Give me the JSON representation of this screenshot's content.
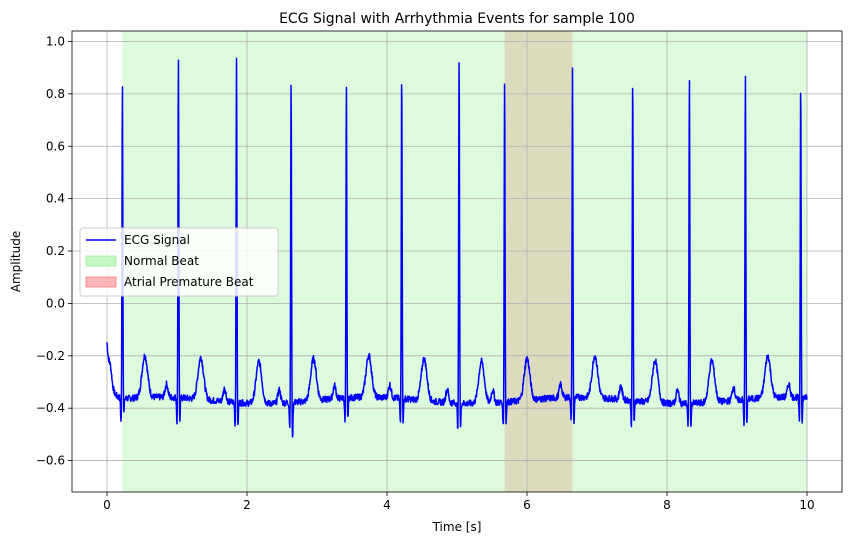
{
  "chart_data": {
    "type": "line",
    "title": "ECG Signal with Arrhythmia Events for sample 100",
    "xlabel": "Time [s]",
    "ylabel": "Amplitude",
    "xlim": [
      -0.5,
      10.5
    ],
    "ylim": [
      -0.72,
      1.04
    ],
    "xticks": [
      0,
      2,
      4,
      6,
      8,
      10
    ],
    "xtick_labels": [
      "0",
      "2",
      "4",
      "6",
      "8",
      "10"
    ],
    "yticks": [
      -0.6,
      -0.4,
      -0.2,
      0.0,
      0.2,
      0.4,
      0.6,
      0.8,
      1.0
    ],
    "ytick_labels": [
      "−0.6",
      "−0.4",
      "−0.2",
      "0.0",
      "0.2",
      "0.4",
      "0.6",
      "0.8",
      "1.0"
    ],
    "grid": true,
    "legend": {
      "position": "center-left",
      "entries": [
        {
          "label": "ECG Signal",
          "kind": "line",
          "color": "#0000ff"
        },
        {
          "label": "Normal Beat",
          "kind": "patch",
          "color": "#90ee90"
        },
        {
          "label": "Atrial Premature Beat",
          "kind": "patch",
          "color": "#ff6e6e"
        }
      ]
    },
    "signal": {
      "name": "ECG Signal",
      "color": "#0000ff",
      "duration_s": 10,
      "baseline": -0.37,
      "start_value": -0.15,
      "r_peaks": [
        {
          "t": 0.22,
          "amp": 0.84,
          "s_min": -0.48
        },
        {
          "t": 1.02,
          "amp": 0.94,
          "s_min": -0.53
        },
        {
          "t": 1.85,
          "amp": 0.96,
          "s_min": -0.55
        },
        {
          "t": 2.63,
          "amp": 0.86,
          "s_min": -0.64
        },
        {
          "t": 3.42,
          "amp": 0.82,
          "s_min": -0.53
        },
        {
          "t": 4.21,
          "amp": 0.89,
          "s_min": -0.54
        },
        {
          "t": 5.03,
          "amp": 0.95,
          "s_min": -0.55
        },
        {
          "t": 5.68,
          "amp": 0.87,
          "s_min": -0.52
        },
        {
          "t": 6.65,
          "amp": 0.88,
          "s_min": -0.57
        },
        {
          "t": 7.51,
          "amp": 0.87,
          "s_min": -0.54
        },
        {
          "t": 8.32,
          "amp": 0.87,
          "s_min": -0.55
        },
        {
          "t": 9.12,
          "amp": 0.87,
          "s_min": -0.53
        },
        {
          "t": 9.91,
          "amp": 0.84,
          "s_min": -0.54
        }
      ]
    },
    "events": [
      {
        "label": "Normal Beat",
        "start": 0.22,
        "end": 1.02,
        "color": "#90ee90",
        "alpha": 0.3
      },
      {
        "label": "Normal Beat",
        "start": 1.02,
        "end": 1.85,
        "color": "#90ee90",
        "alpha": 0.3
      },
      {
        "label": "Normal Beat",
        "start": 1.85,
        "end": 2.63,
        "color": "#90ee90",
        "alpha": 0.3
      },
      {
        "label": "Normal Beat",
        "start": 2.63,
        "end": 3.42,
        "color": "#90ee90",
        "alpha": 0.3
      },
      {
        "label": "Normal Beat",
        "start": 3.42,
        "end": 4.21,
        "color": "#90ee90",
        "alpha": 0.3
      },
      {
        "label": "Normal Beat",
        "start": 4.21,
        "end": 5.03,
        "color": "#90ee90",
        "alpha": 0.3
      },
      {
        "label": "Normal Beat",
        "start": 5.03,
        "end": 5.68,
        "color": "#90ee90",
        "alpha": 0.3
      },
      {
        "label": "Atrial Premature Beat",
        "start": 5.68,
        "end": 6.65,
        "color": "#ff6e6e",
        "alpha": 0.3
      },
      {
        "label": "Normal Beat",
        "start": 5.68,
        "end": 6.65,
        "color": "#90ee90",
        "alpha": 0.3
      },
      {
        "label": "Normal Beat",
        "start": 6.65,
        "end": 7.51,
        "color": "#90ee90",
        "alpha": 0.3
      },
      {
        "label": "Normal Beat",
        "start": 7.51,
        "end": 8.32,
        "color": "#90ee90",
        "alpha": 0.3
      },
      {
        "label": "Normal Beat",
        "start": 8.32,
        "end": 9.12,
        "color": "#90ee90",
        "alpha": 0.3
      },
      {
        "label": "Normal Beat",
        "start": 9.12,
        "end": 10.0,
        "color": "#90ee90",
        "alpha": 0.3
      }
    ]
  }
}
